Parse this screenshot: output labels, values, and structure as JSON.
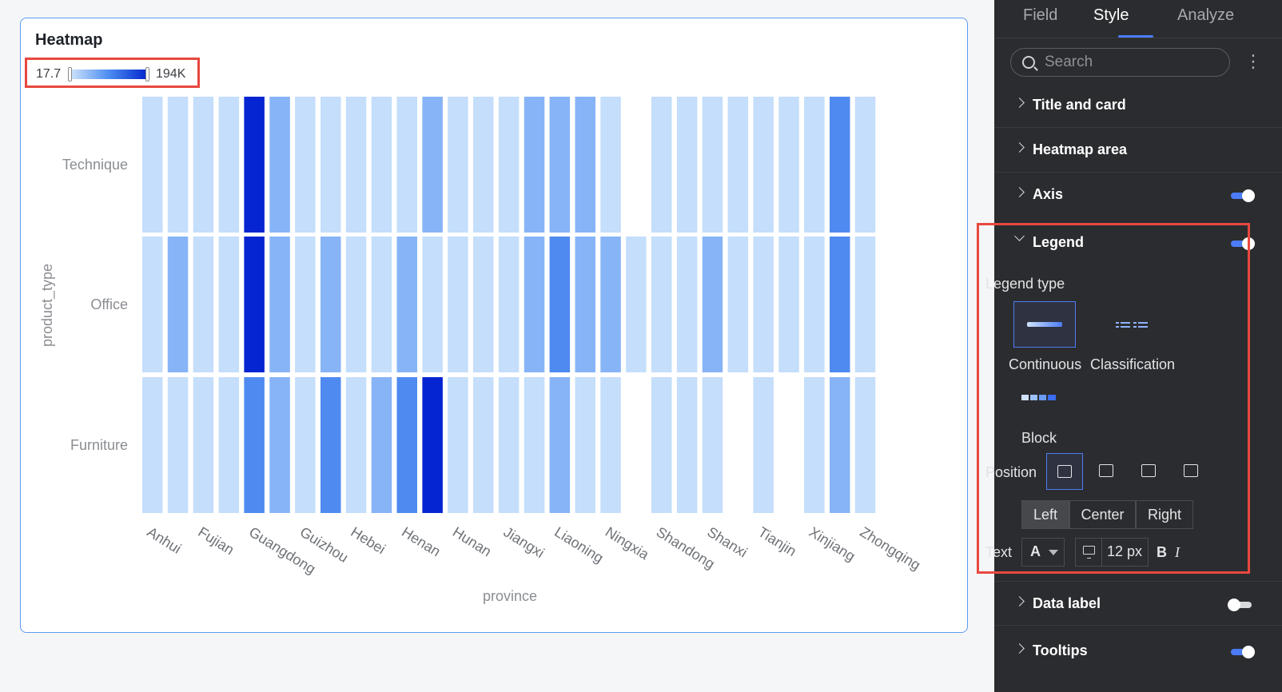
{
  "chart": {
    "title": "Heatmap",
    "legend": {
      "min_label": "17.7",
      "max_label": "194K"
    },
    "y_axis_title": "product_type",
    "x_axis_title": "province"
  },
  "chart_data": {
    "type": "heatmap",
    "title": "Heatmap",
    "xlabel": "province",
    "ylabel": "product_type",
    "x_tick_labels": [
      "Anhui",
      "Fujian",
      "Guangdong",
      "Guizhou",
      "Hebei",
      "Henan",
      "Hunan",
      "Jiangxi",
      "Liaoning",
      "Ningxia",
      "Shandong",
      "Shanxi",
      "Tianjin",
      "Xinjiang",
      "Zhongqing"
    ],
    "rows": [
      "Technique",
      "Office",
      "Furniture"
    ],
    "value_range": [
      17.7,
      194000
    ],
    "columns": 29,
    "cells": [
      [
        0.1,
        0.1,
        0.1,
        0.1,
        0.95,
        0.35,
        0.1,
        0.1,
        0.1,
        0.1,
        0.1,
        0.35,
        0.1,
        0.1,
        0.1,
        0.4,
        0.4,
        0.4,
        0.1,
        null,
        0.1,
        0.1,
        0.1,
        0.1,
        0.1,
        0.1,
        0.1,
        0.65,
        0.1
      ],
      [
        0.1,
        0.4,
        0.1,
        0.1,
        0.95,
        0.35,
        0.1,
        0.35,
        0.1,
        0.1,
        0.35,
        0.1,
        0.1,
        0.1,
        0.1,
        0.35,
        0.6,
        0.4,
        0.35,
        0.1,
        0.1,
        0.1,
        0.35,
        0.1,
        0.1,
        0.1,
        0.1,
        0.65,
        0.1
      ],
      [
        0.1,
        0.1,
        0.1,
        0.1,
        0.6,
        0.4,
        0.1,
        0.6,
        0.1,
        0.35,
        0.6,
        0.95,
        0.1,
        0.1,
        0.1,
        0.1,
        0.35,
        0.1,
        0.1,
        null,
        0.1,
        0.1,
        0.1,
        null,
        0.1,
        null,
        0.1,
        0.4,
        0.1
      ]
    ]
  },
  "panel": {
    "tabs": [
      "Field",
      "Style",
      "Analyze"
    ],
    "search_placeholder": "Search",
    "more_glyph": "⋮",
    "sections": {
      "title_card": "Title and card",
      "heatmap_area": "Heatmap area",
      "axis": "Axis",
      "legend": "Legend",
      "data_label": "Data label",
      "tooltips": "Tooltips"
    },
    "legend_settings": {
      "legend_type_label": "Legend type",
      "types": [
        "Continuous",
        "Classification",
        "Block"
      ],
      "position_label": "Position",
      "alignment": [
        "Left",
        "Center",
        "Right"
      ],
      "text_label": "Text",
      "font_color_glyph": "A",
      "font_size": "12 px",
      "bold_glyph": "B",
      "italic_glyph": "I"
    }
  },
  "colors": {
    "accent": "#4c7cf5",
    "highlight": "#e8483f",
    "cell_light": "#c4defb",
    "cell_mid": "#86b4f7",
    "cell_strong": "#4f8af0",
    "cell_max": "#0425d1"
  }
}
